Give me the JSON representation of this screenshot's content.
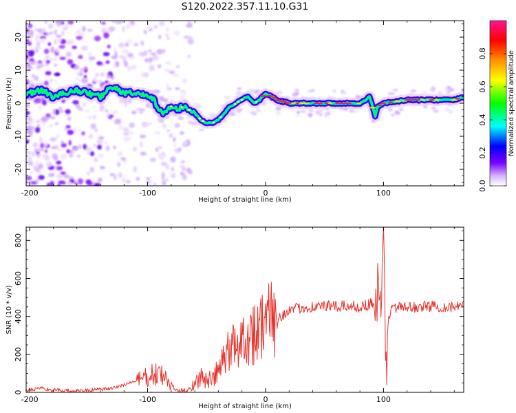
{
  "page_title": "S120.2022.357.11.10.G31",
  "colors": {
    "snr_line": "#e8302a",
    "spectrogram_ridge": "#ff1a2a",
    "colorbar_stops": [
      "#ffffff",
      "#d7b6ff",
      "#7a00ff",
      "#0000ff",
      "#00ffff",
      "#00ff00",
      "#ffff00",
      "#ff9000",
      "#ff0000",
      "#ff1493"
    ]
  },
  "chart_data": [
    {
      "type": "heatmap",
      "title": "",
      "xlabel": "Height of straight line (km)",
      "ylabel": "Frequency (Hz)",
      "xlim": [
        -203,
        168
      ],
      "ylim": [
        -25,
        25
      ],
      "x_ticks": [
        -200,
        -100,
        0,
        100
      ],
      "y_ticks": [
        -20,
        -10,
        0,
        10,
        20
      ],
      "x_tick_labels": [
        "-200",
        "-100",
        "0",
        "100"
      ],
      "y_tick_labels": [
        "-20",
        "-10",
        "0",
        "10",
        "20"
      ],
      "ridge": {
        "x": [
          -200,
          -190,
          -180,
          -170,
          -160,
          -150,
          -140,
          -130,
          -120,
          -110,
          -100,
          -95,
          -90,
          -85,
          -80,
          -75,
          -70,
          -65,
          -60,
          -55,
          -50,
          -45,
          -40,
          -35,
          -30,
          -25,
          -20,
          -15,
          -10,
          -5,
          0,
          5,
          10,
          20,
          40,
          60,
          80,
          85,
          88,
          90,
          93,
          95,
          100,
          120,
          140,
          160,
          168
        ],
        "y": [
          3,
          4,
          2,
          3,
          4,
          3,
          2,
          5,
          3,
          3,
          2,
          1,
          -2,
          -3,
          -1,
          -2,
          -1,
          -2,
          -3,
          -5,
          -6,
          -6,
          -5,
          -3,
          -1,
          0,
          1,
          2,
          0,
          1,
          3,
          2,
          1,
          0,
          0,
          0,
          0,
          1,
          2,
          0,
          -4,
          -1,
          0,
          1,
          1,
          1,
          2
        ]
      },
      "colorbar": {
        "label": "Normalized spectral amplitude",
        "range": [
          0,
          1
        ],
        "ticks": [
          0.0,
          0.2,
          0.4,
          0.6,
          0.8
        ],
        "tick_labels": [
          "0.0",
          "0.2",
          "0.4",
          "0.6",
          "0.8"
        ]
      },
      "grid": false
    },
    {
      "type": "line",
      "title": "",
      "xlabel": "Height of straight line (km)",
      "ylabel": "SNR (10 * v/v)",
      "xlim": [
        -203,
        168
      ],
      "ylim": [
        0,
        870
      ],
      "x_ticks": [
        -200,
        -100,
        0,
        100
      ],
      "y_ticks": [
        0,
        200,
        400,
        600,
        800
      ],
      "x_tick_labels": [
        "-200",
        "-100",
        "0",
        "100"
      ],
      "y_tick_labels": [
        "0",
        "200",
        "400",
        "600",
        "800"
      ],
      "series": [
        {
          "x": [
            -203,
            -190,
            -180,
            -170,
            -160,
            -150,
            -140,
            -130,
            -120,
            -110,
            -100,
            -95,
            -90,
            -85,
            -80,
            -75,
            -70,
            -65,
            -60,
            -55,
            -50,
            -45,
            -40,
            -35,
            -30,
            -25,
            -20,
            -15,
            -10,
            -5,
            0,
            5,
            10,
            15,
            20,
            30,
            40,
            50,
            60,
            70,
            80,
            85,
            90,
            93,
            96,
            98,
            100,
            102,
            104,
            108,
            120,
            130,
            140,
            150,
            160,
            168
          ],
          "y": [
            10,
            20,
            12,
            10,
            8,
            10,
            15,
            20,
            40,
            60,
            80,
            90,
            95,
            75,
            30,
            10,
            8,
            15,
            50,
            80,
            60,
            70,
            110,
            180,
            230,
            260,
            280,
            300,
            310,
            350,
            370,
            380,
            390,
            410,
            430,
            445,
            450,
            455,
            450,
            455,
            450,
            460,
            470,
            480,
            500,
            350,
            820,
            80,
            400,
            450,
            445,
            450,
            455,
            450,
            450,
            450
          ]
        }
      ],
      "grid": false
    }
  ]
}
